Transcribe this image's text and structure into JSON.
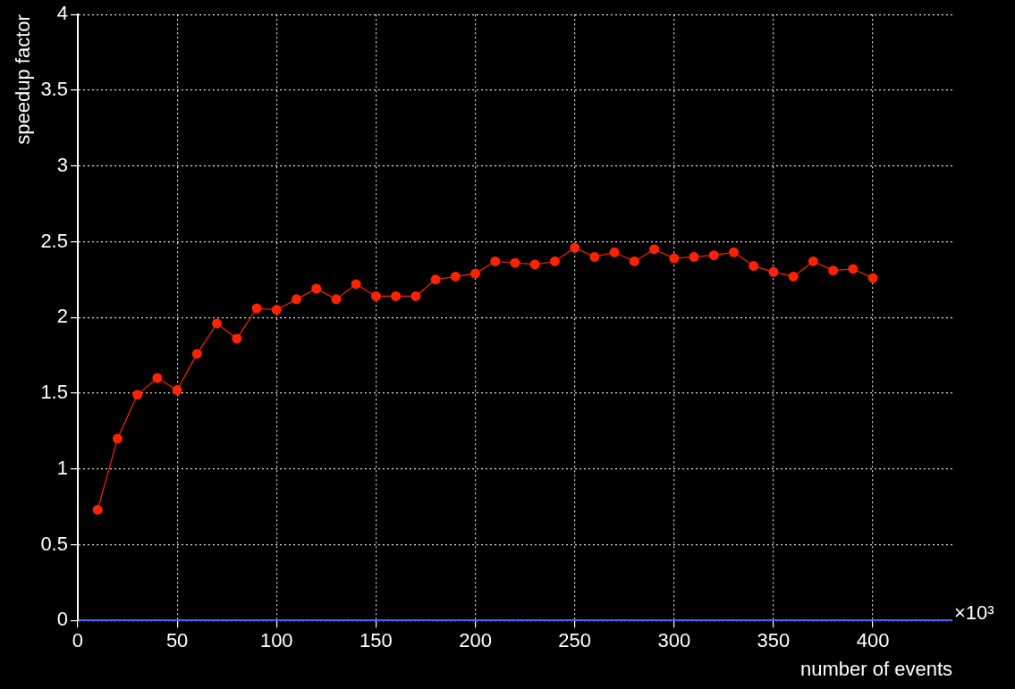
{
  "chart_data": {
    "type": "line",
    "xlabel": "number of events",
    "ylabel": "speedup factor",
    "annotations": [
      "×10³"
    ],
    "x": [
      10,
      20,
      30,
      40,
      50,
      60,
      70,
      80,
      90,
      100,
      110,
      120,
      130,
      140,
      150,
      160,
      170,
      180,
      190,
      200,
      210,
      220,
      230,
      240,
      250,
      260,
      270,
      280,
      290,
      300,
      310,
      320,
      330,
      340,
      350,
      360,
      370,
      380,
      390,
      400
    ],
    "series": [
      {
        "color": "#ff2200",
        "values": [
          0.73,
          1.2,
          1.49,
          1.6,
          1.52,
          1.76,
          1.96,
          1.86,
          2.06,
          2.05,
          2.12,
          2.19,
          2.12,
          2.22,
          2.14,
          2.14,
          2.14,
          2.25,
          2.27,
          2.29,
          2.37,
          2.36,
          2.35,
          2.37,
          2.46,
          2.4,
          2.43,
          2.37,
          2.45,
          2.39,
          2.4,
          2.41,
          2.43,
          2.34,
          2.3,
          2.27,
          2.37,
          2.31,
          2.32,
          2.26
        ]
      }
    ],
    "xlim": [
      0,
      440
    ],
    "xticks": [
      0,
      50,
      100,
      150,
      200,
      250,
      300,
      350,
      400
    ],
    "ylim": [
      0,
      4
    ],
    "yticks": [
      0,
      0.5,
      1,
      1.5,
      2,
      2.5,
      3,
      3.5,
      4
    ],
    "grid": true,
    "legend": false,
    "marker": "circle",
    "line_style": "solid"
  }
}
